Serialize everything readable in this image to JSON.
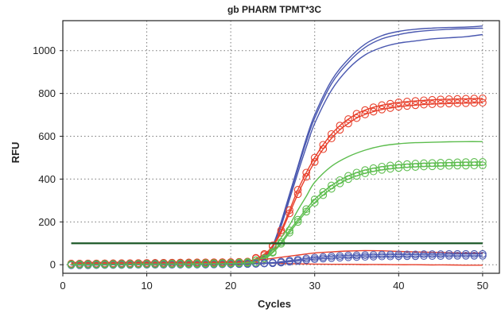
{
  "chart_data": {
    "type": "line",
    "title": "gb PHARM TPMT*3C",
    "xlabel": "Cycles",
    "ylabel": "RFU",
    "xlim": [
      0,
      52
    ],
    "ylim": [
      -40,
      1140
    ],
    "xticks": [
      0,
      10,
      20,
      30,
      40,
      50
    ],
    "yticks": [
      0,
      200,
      400,
      600,
      800,
      1000
    ],
    "grid": true,
    "legend": "none",
    "colors": {
      "blue": "#4a58b0",
      "red": "#e8402c",
      "green": "#5dbd4e",
      "threshold": "#1e5a2a"
    },
    "threshold": {
      "y": 100,
      "x": [
        1,
        50
      ]
    },
    "series": [
      {
        "color": "blue",
        "markers": false,
        "x": [
          1,
          5,
          10,
          15,
          20,
          22,
          24,
          25,
          26,
          27,
          28,
          29,
          30,
          32,
          34,
          36,
          38,
          40,
          42,
          44,
          46,
          48,
          50
        ],
        "y": [
          2,
          3,
          4,
          6,
          10,
          16,
          40,
          90,
          200,
          330,
          460,
          590,
          700,
          860,
          960,
          1030,
          1070,
          1090,
          1100,
          1105,
          1108,
          1110,
          1115
        ]
      },
      {
        "color": "blue",
        "markers": false,
        "x": [
          1,
          5,
          10,
          15,
          20,
          22,
          24,
          25,
          26,
          27,
          28,
          29,
          30,
          32,
          34,
          36,
          38,
          40,
          42,
          44,
          46,
          48,
          50
        ],
        "y": [
          2,
          3,
          4,
          6,
          10,
          16,
          38,
          85,
          190,
          320,
          450,
          575,
          685,
          845,
          945,
          1015,
          1055,
          1075,
          1088,
          1095,
          1100,
          1103,
          1105
        ]
      },
      {
        "color": "blue",
        "markers": false,
        "x": [
          1,
          5,
          10,
          15,
          20,
          22,
          24,
          25,
          26,
          27,
          28,
          29,
          30,
          32,
          34,
          36,
          38,
          40,
          42,
          44,
          46,
          48,
          50
        ],
        "y": [
          2,
          3,
          4,
          6,
          10,
          15,
          35,
          80,
          180,
          305,
          430,
          550,
          660,
          815,
          915,
          980,
          1015,
          1035,
          1045,
          1055,
          1060,
          1065,
          1075
        ]
      },
      {
        "color": "red",
        "markers": true,
        "x": [
          1,
          5,
          10,
          15,
          20,
          22,
          24,
          25,
          26,
          27,
          28,
          29,
          30,
          31,
          32,
          33,
          34,
          35,
          36,
          37,
          38,
          39,
          40,
          41,
          42,
          43,
          44,
          45,
          46,
          47,
          48,
          49,
          50
        ],
        "y": [
          5,
          6,
          8,
          10,
          12,
          14,
          50,
          90,
          160,
          255,
          350,
          430,
          500,
          560,
          610,
          650,
          680,
          705,
          722,
          735,
          745,
          752,
          758,
          762,
          765,
          768,
          770,
          772,
          773,
          774,
          775,
          776,
          777
        ]
      },
      {
        "color": "red",
        "markers": true,
        "x": [
          1,
          5,
          10,
          15,
          20,
          22,
          24,
          25,
          26,
          27,
          28,
          29,
          30,
          31,
          32,
          33,
          34,
          35,
          36,
          37,
          38,
          39,
          40,
          41,
          42,
          43,
          44,
          45,
          46,
          47,
          48,
          49,
          50
        ],
        "y": [
          5,
          6,
          8,
          10,
          12,
          14,
          45,
          85,
          150,
          240,
          330,
          410,
          480,
          540,
          590,
          630,
          660,
          685,
          702,
          715,
          725,
          732,
          738,
          742,
          745,
          748,
          750,
          752,
          753,
          754,
          755,
          756,
          757
        ]
      },
      {
        "color": "green",
        "markers": false,
        "x": [
          1,
          5,
          10,
          15,
          20,
          22,
          24,
          25,
          26,
          27,
          28,
          29,
          30,
          32,
          34,
          36,
          38,
          40,
          42,
          44,
          46,
          48,
          50
        ],
        "y": [
          2,
          3,
          4,
          6,
          8,
          12,
          35,
          70,
          125,
          185,
          255,
          320,
          385,
          460,
          505,
          535,
          555,
          565,
          570,
          572,
          574,
          575,
          575
        ]
      },
      {
        "color": "green",
        "markers": true,
        "x": [
          1,
          5,
          10,
          15,
          20,
          22,
          24,
          25,
          26,
          27,
          28,
          29,
          30,
          31,
          32,
          33,
          34,
          35,
          36,
          37,
          38,
          39,
          40,
          41,
          42,
          43,
          44,
          45,
          46,
          47,
          48,
          49,
          50
        ],
        "y": [
          2,
          3,
          4,
          6,
          8,
          12,
          30,
          60,
          105,
          160,
          210,
          260,
          305,
          340,
          370,
          395,
          415,
          430,
          442,
          451,
          458,
          463,
          467,
          470,
          472,
          474,
          475,
          476,
          477,
          478,
          479,
          480,
          480
        ]
      },
      {
        "color": "green",
        "markers": true,
        "x": [
          1,
          5,
          10,
          15,
          20,
          22,
          24,
          25,
          26,
          27,
          28,
          29,
          30,
          31,
          32,
          33,
          34,
          35,
          36,
          37,
          38,
          39,
          40,
          41,
          42,
          43,
          44,
          45,
          46,
          47,
          48,
          49,
          50
        ],
        "y": [
          2,
          3,
          4,
          6,
          8,
          12,
          28,
          56,
          98,
          150,
          200,
          248,
          290,
          325,
          355,
          380,
          400,
          415,
          427,
          436,
          443,
          448,
          452,
          455,
          457,
          459,
          460,
          461,
          462,
          463,
          463,
          464,
          464
        ]
      },
      {
        "color": "red",
        "markers": false,
        "x": [
          1,
          5,
          10,
          15,
          20,
          22,
          24,
          26,
          28,
          30,
          32,
          34,
          36,
          38,
          40,
          42,
          44,
          46,
          48,
          50
        ],
        "y": [
          10,
          11,
          12,
          13,
          15,
          18,
          25,
          35,
          45,
          55,
          60,
          64,
          66,
          65,
          62,
          60,
          58,
          57,
          55,
          55
        ]
      },
      {
        "color": "red",
        "markers": false,
        "x": [
          1,
          5,
          10,
          15,
          20,
          22,
          24,
          26,
          28,
          30,
          32,
          34,
          36,
          38,
          40,
          42,
          44,
          46,
          48,
          50
        ],
        "y": [
          6,
          7,
          8,
          9,
          10,
          10,
          8,
          6,
          4,
          3,
          2,
          2,
          1,
          1,
          0,
          0,
          -1,
          -1,
          -2,
          -2
        ]
      },
      {
        "color": "blue",
        "markers": true,
        "x": [
          1,
          3,
          5,
          7,
          9,
          11,
          13,
          15,
          17,
          19,
          21,
          23,
          25,
          26,
          27,
          28,
          29,
          30,
          31,
          32,
          33,
          34,
          35,
          36,
          37,
          38,
          39,
          40,
          41,
          42,
          43,
          44,
          45,
          46,
          47,
          48,
          49,
          50
        ],
        "y": [
          0,
          1,
          1,
          2,
          2,
          3,
          3,
          3,
          3,
          4,
          5,
          6,
          10,
          14,
          19,
          24,
          29,
          33,
          36,
          39,
          41,
          43,
          44,
          45,
          46,
          47,
          47,
          48,
          48,
          48,
          49,
          49,
          49,
          50,
          50,
          50,
          50,
          50
        ]
      },
      {
        "color": "blue",
        "markers": true,
        "x": [
          1,
          3,
          5,
          7,
          9,
          11,
          13,
          15,
          17,
          19,
          21,
          23,
          25,
          26,
          27,
          28,
          29,
          30,
          31,
          32,
          33,
          34,
          35,
          36,
          37,
          38,
          39,
          40,
          41,
          42,
          43,
          44,
          45,
          46,
          47,
          48,
          49,
          50
        ],
        "y": [
          -2,
          -2,
          -1,
          -1,
          0,
          0,
          0,
          1,
          1,
          2,
          3,
          4,
          7,
          10,
          14,
          18,
          22,
          26,
          29,
          31,
          33,
          35,
          36,
          37,
          38,
          39,
          39,
          40,
          40,
          40,
          41,
          41,
          41,
          42,
          42,
          42,
          42,
          42
        ]
      },
      {
        "color": "green",
        "markers": true,
        "x": [
          1,
          3,
          5,
          7,
          9,
          11,
          13,
          15,
          17,
          19,
          21,
          23
        ],
        "y": [
          0,
          0,
          1,
          1,
          2,
          2,
          3,
          3,
          4,
          5,
          7,
          10
        ]
      }
    ]
  }
}
